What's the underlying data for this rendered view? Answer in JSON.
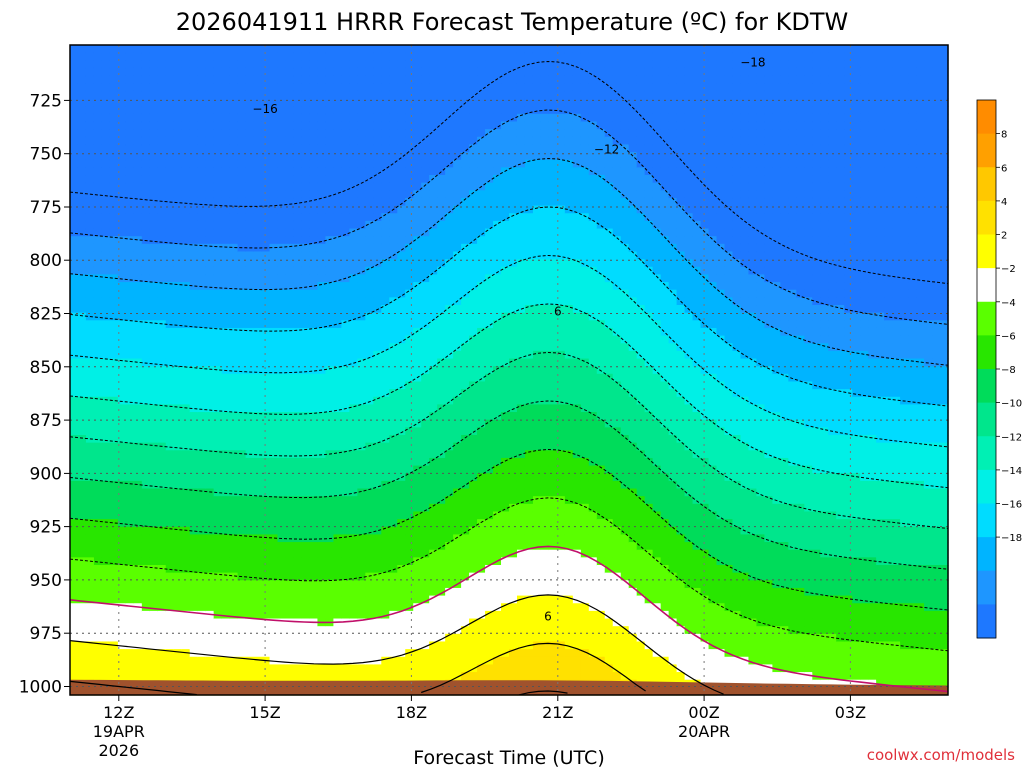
{
  "chart_data": {
    "type": "heatmap",
    "title": "2026041911 HRRR Forecast Temperature (ºC) for KDTW",
    "xlabel": "Forecast Time (UTC)",
    "credit": "coolwx.com/models",
    "y_ticks": [
      "725",
      "750",
      "775",
      "800",
      "825",
      "850",
      "875",
      "900",
      "925",
      "950",
      "975",
      "1000"
    ],
    "y_values": [
      725,
      750,
      775,
      800,
      825,
      850,
      875,
      900,
      925,
      950,
      975,
      1000
    ],
    "x_ticks": [
      {
        "label": "12Z",
        "sub1": "19APR",
        "sub2": "2026"
      },
      {
        "label": "15Z",
        "sub1": "",
        "sub2": ""
      },
      {
        "label": "18Z",
        "sub1": "",
        "sub2": ""
      },
      {
        "label": "21Z",
        "sub1": "",
        "sub2": ""
      },
      {
        "label": "00Z",
        "sub1": "20APR",
        "sub2": ""
      },
      {
        "label": "03Z",
        "sub1": "",
        "sub2": ""
      }
    ],
    "x_hours": [
      12,
      15,
      18,
      21,
      24,
      27
    ],
    "x_range_hours": [
      11,
      29
    ],
    "y_range_hpa": [
      699,
      1004
    ],
    "colorbar_labels": [
      "8",
      "6",
      "4",
      "2",
      "−2",
      "−4",
      "−6",
      "−8",
      "−10",
      "−12",
      "−14",
      "−16",
      "−18"
    ],
    "contour_labels": [
      {
        "text": "−18",
        "hour": 25.0,
        "hpa": 709
      },
      {
        "text": "−16",
        "hour": 15.0,
        "hpa": 731
      },
      {
        "text": "−12",
        "hour": 22.0,
        "hpa": 750
      },
      {
        "text": "6",
        "hour": 21.0,
        "hpa": 826
      },
      {
        "text": "6",
        "hour": 20.8,
        "hpa": 969
      }
    ],
    "levels": [
      -20,
      -18,
      -16,
      -14,
      -12,
      -10,
      -8,
      -6,
      -4,
      -2,
      0,
      2,
      4,
      6,
      8,
      10
    ],
    "colors": [
      "#1e78ff",
      "#1e96ff",
      "#00b4ff",
      "#00dcff",
      "#00f0e6",
      "#00f0b4",
      "#00e68c",
      "#00dc5a",
      "#28e600",
      "#5aff00",
      "#ffffff",
      "#ffff00",
      "#ffe100",
      "#ffc800",
      "#ffa000",
      "#ff8c00"
    ],
    "ground_color": "#a0522d"
  }
}
